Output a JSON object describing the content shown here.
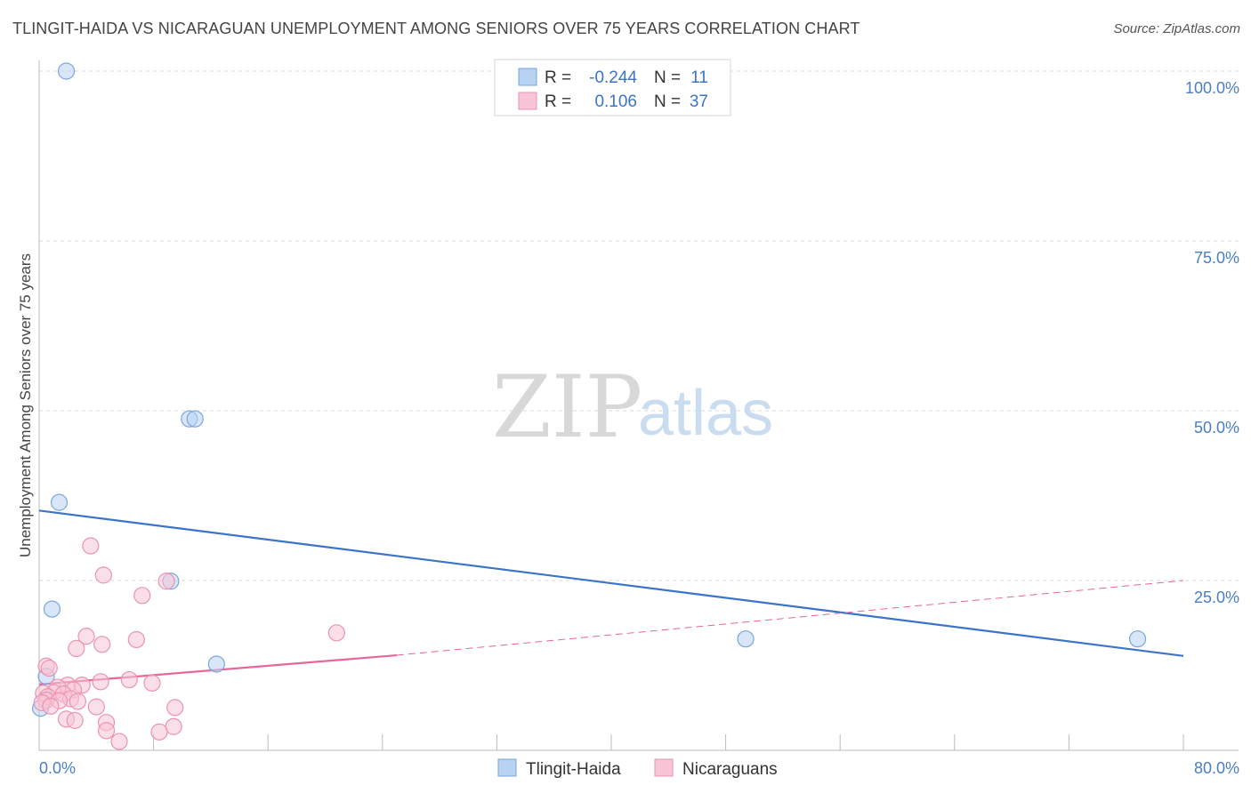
{
  "title": "TLINGIT-HAIDA VS NICARAGUAN UNEMPLOYMENT AMONG SENIORS OVER 75 YEARS CORRELATION CHART",
  "source": "Source: ZipAtlas.com",
  "watermark": {
    "zip": "ZIP",
    "atlas": "atlas"
  },
  "colors": {
    "blue_fill": "#b8d2f2",
    "blue_stroke": "#7aa6dc",
    "blue_line": "#3b74c9",
    "pink_fill": "#f7c5d5",
    "pink_stroke": "#eb93b2",
    "pink_line": "#e4689a",
    "grid": "#d9d9d9",
    "axis": "#bbbbbb"
  },
  "legend": {
    "rows": [
      {
        "r_label": "R = ",
        "r_value": "-0.244",
        "n_label": "N = ",
        "n_value": "11"
      },
      {
        "r_label": "R = ",
        "r_value": "0.106",
        "n_label": "N = ",
        "n_value": "37"
      }
    ]
  },
  "chart_data": {
    "type": "scatter",
    "ylabel": "Unemployment Among Seniors over 75 years",
    "xlim": [
      0,
      80
    ],
    "ylim": [
      0,
      100
    ],
    "x_tick_labels": [
      "0.0%",
      "80.0%"
    ],
    "y_ticks": [
      25,
      50,
      75,
      100
    ],
    "y_tick_labels": [
      "25.0%",
      "50.0%",
      "75.0%",
      "100.0%"
    ],
    "grid": true,
    "series": [
      {
        "name": "Tlingit-Haida",
        "color": "blue",
        "points": [
          [
            1.9,
            100
          ],
          [
            10.5,
            48.8
          ],
          [
            10.9,
            48.8
          ],
          [
            1.4,
            36.5
          ],
          [
            0.9,
            20.8
          ],
          [
            9.2,
            24.9
          ],
          [
            12.4,
            12.7
          ],
          [
            0.5,
            10.9
          ],
          [
            0.1,
            6.2
          ],
          [
            49.4,
            16.4
          ],
          [
            76.8,
            16.4
          ]
        ],
        "trend": {
          "x": [
            0,
            80
          ],
          "y": [
            35.3,
            13.9
          ],
          "style": "solid"
        }
      },
      {
        "name": "Nicaraguans",
        "color": "pink",
        "points": [
          [
            3.6,
            30.1
          ],
          [
            4.5,
            25.8
          ],
          [
            7.2,
            22.8
          ],
          [
            8.9,
            24.9
          ],
          [
            20.8,
            17.3
          ],
          [
            3.3,
            16.8
          ],
          [
            6.8,
            16.3
          ],
          [
            2.6,
            15.0
          ],
          [
            4.4,
            15.6
          ],
          [
            0.5,
            12.4
          ],
          [
            0.7,
            12.1
          ],
          [
            6.3,
            10.4
          ],
          [
            7.9,
            9.9
          ],
          [
            4.3,
            10.1
          ],
          [
            2.0,
            9.6
          ],
          [
            1.3,
            9.3
          ],
          [
            3.0,
            9.6
          ],
          [
            2.4,
            8.9
          ],
          [
            1.0,
            8.5
          ],
          [
            1.7,
            8.3
          ],
          [
            0.3,
            8.4
          ],
          [
            0.6,
            7.9
          ],
          [
            2.2,
            7.6
          ],
          [
            0.5,
            7.4
          ],
          [
            1.4,
            7.3
          ],
          [
            2.7,
            7.2
          ],
          [
            0.2,
            7.0
          ],
          [
            0.8,
            6.5
          ],
          [
            4.0,
            6.4
          ],
          [
            9.5,
            6.3
          ],
          [
            1.9,
            4.6
          ],
          [
            2.5,
            4.4
          ],
          [
            4.7,
            4.1
          ],
          [
            9.4,
            3.5
          ],
          [
            4.7,
            2.9
          ],
          [
            8.4,
            2.7
          ],
          [
            5.6,
            1.3
          ]
        ],
        "trend": {
          "x": [
            0,
            25
          ],
          "y": [
            9.7,
            14.0
          ],
          "style": "solid"
        },
        "trend_dashed": {
          "x": [
            25,
            80
          ],
          "y": [
            14.0,
            25.0
          ],
          "style": "dashed"
        }
      }
    ]
  }
}
